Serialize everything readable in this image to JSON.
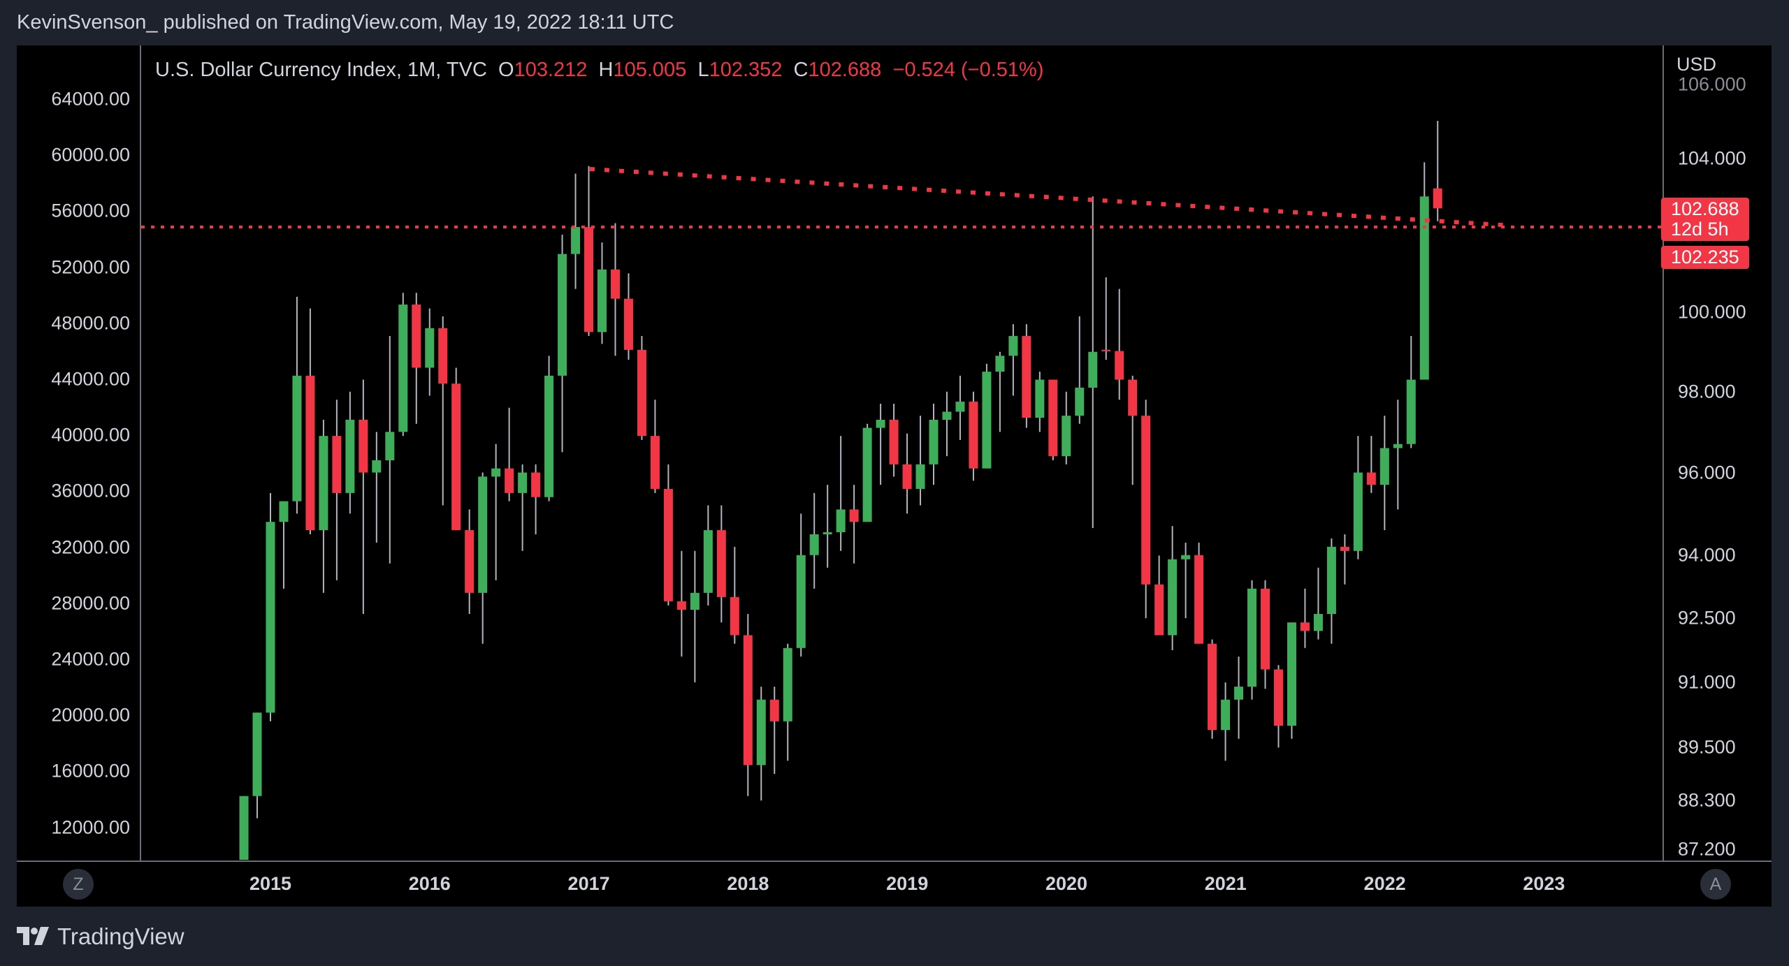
{
  "header": {
    "publish_line": "KevinSvenson_ published on TradingView.com, May 19, 2022 18:11 UTC"
  },
  "legend": {
    "symbol": "U.S. Dollar Currency Index, 1M, TVC",
    "o_label": "O",
    "o": "103.212",
    "h_label": "H",
    "h": "105.005",
    "l_label": "L",
    "l": "102.352",
    "c_label": "C",
    "c": "102.688",
    "change": "−0.524 (−0.51%)"
  },
  "left_axis": [
    "64000.00",
    "60000.00",
    "56000.00",
    "52000.00",
    "48000.00",
    "44000.00",
    "40000.00",
    "36000.00",
    "32000.00",
    "28000.00",
    "24000.00",
    "20000.00",
    "16000.00",
    "12000.00"
  ],
  "right_axis": {
    "currency": "USD",
    "ticks": [
      "106.000",
      "104.000",
      "100.000",
      "98.000",
      "96.000",
      "94.000",
      "92.500",
      "91.000",
      "89.500",
      "88.300",
      "87.200"
    ],
    "last_price": "102.688",
    "countdown": "12d 5h",
    "line_price": "102.235"
  },
  "time_axis": [
    "2015",
    "2016",
    "2017",
    "2018",
    "2019",
    "2020",
    "2021",
    "2022",
    "2023"
  ],
  "buttons": {
    "zoom": "Z",
    "auto": "A"
  },
  "footer": {
    "brand": "TradingView"
  },
  "colors": {
    "up": "#3fae5a",
    "down": "#f23645",
    "wick": "#b2b5be",
    "line": "#f23645"
  },
  "chart_data": {
    "type": "candlestick",
    "title": "U.S. Dollar Currency Index, 1M, TVC",
    "start": "2014-10",
    "interval": "1M",
    "ohlc": [
      [
        86.0,
        86.9,
        84.5,
        86.9
      ],
      [
        86.9,
        88.4,
        86.8,
        88.4
      ],
      [
        88.4,
        90.3,
        87.9,
        90.3
      ],
      [
        90.3,
        95.5,
        90.1,
        94.8
      ],
      [
        94.8,
        95.3,
        93.2,
        95.3
      ],
      [
        95.3,
        100.4,
        95.0,
        98.4
      ],
      [
        98.4,
        100.1,
        94.5,
        94.6
      ],
      [
        94.6,
        97.3,
        93.1,
        96.9
      ],
      [
        96.9,
        97.8,
        93.4,
        95.5
      ],
      [
        95.5,
        98.0,
        95.0,
        97.3
      ],
      [
        97.3,
        98.3,
        92.6,
        96.0
      ],
      [
        96.0,
        97.0,
        94.3,
        96.3
      ],
      [
        96.3,
        99.4,
        93.8,
        97.0
      ],
      [
        97.0,
        100.5,
        96.9,
        100.2
      ],
      [
        100.2,
        100.5,
        97.2,
        98.6
      ],
      [
        98.6,
        100.1,
        97.9,
        99.6
      ],
      [
        99.6,
        99.9,
        95.2,
        98.2
      ],
      [
        98.2,
        98.6,
        94.6,
        94.6
      ],
      [
        94.6,
        95.1,
        92.6,
        93.1
      ],
      [
        93.1,
        96.0,
        91.9,
        95.9
      ],
      [
        95.9,
        96.7,
        93.4,
        96.1
      ],
      [
        96.1,
        97.6,
        95.3,
        95.5
      ],
      [
        95.5,
        96.2,
        94.1,
        96.0
      ],
      [
        96.0,
        96.2,
        94.5,
        95.4
      ],
      [
        95.4,
        98.9,
        95.3,
        98.4
      ],
      [
        98.4,
        102.0,
        96.5,
        101.5
      ],
      [
        101.5,
        103.6,
        100.6,
        102.2
      ],
      [
        102.2,
        103.8,
        99.4,
        99.5
      ],
      [
        99.5,
        101.8,
        99.2,
        101.1
      ],
      [
        101.1,
        102.3,
        98.9,
        100.35
      ],
      [
        100.35,
        101.0,
        98.8,
        99.05
      ],
      [
        99.05,
        99.4,
        96.8,
        96.9
      ],
      [
        96.9,
        97.8,
        95.5,
        95.6
      ],
      [
        95.6,
        96.2,
        92.8,
        92.9
      ],
      [
        92.9,
        94.1,
        91.6,
        92.7
      ],
      [
        92.7,
        94.1,
        91.0,
        93.1
      ],
      [
        93.1,
        95.2,
        92.8,
        94.6
      ],
      [
        94.6,
        95.2,
        92.4,
        93.0
      ],
      [
        93.0,
        94.2,
        91.9,
        92.1
      ],
      [
        92.1,
        92.6,
        88.4,
        89.1
      ],
      [
        89.1,
        90.9,
        88.3,
        90.6
      ],
      [
        90.6,
        90.9,
        88.9,
        90.1
      ],
      [
        90.1,
        91.9,
        89.2,
        91.8
      ],
      [
        91.8,
        95.0,
        91.6,
        94.0
      ],
      [
        94.0,
        95.5,
        93.2,
        94.5
      ],
      [
        94.5,
        95.7,
        93.7,
        94.55
      ],
      [
        94.55,
        96.9,
        94.1,
        95.1
      ],
      [
        95.1,
        95.7,
        93.8,
        94.8
      ],
      [
        94.8,
        97.2,
        94.8,
        97.1
      ],
      [
        97.1,
        97.7,
        95.7,
        97.3
      ],
      [
        97.3,
        97.7,
        95.9,
        96.2
      ],
      [
        96.2,
        96.96,
        95.0,
        95.6
      ],
      [
        95.6,
        97.4,
        95.2,
        96.2
      ],
      [
        96.2,
        97.7,
        95.7,
        97.3
      ],
      [
        97.3,
        98.0,
        96.4,
        97.5
      ],
      [
        97.5,
        98.4,
        96.8,
        97.75
      ],
      [
        97.75,
        98.0,
        95.8,
        96.1
      ],
      [
        96.1,
        98.7,
        96.1,
        98.5
      ],
      [
        98.5,
        99.0,
        97.0,
        98.9
      ],
      [
        98.9,
        99.7,
        97.9,
        99.4
      ],
      [
        99.4,
        99.7,
        97.1,
        97.35
      ],
      [
        97.35,
        98.5,
        97.0,
        98.3
      ],
      [
        98.3,
        98.3,
        96.3,
        96.4
      ],
      [
        96.4,
        98.0,
        96.2,
        97.4
      ],
      [
        97.4,
        99.9,
        97.2,
        98.1
      ],
      [
        98.1,
        103.0,
        94.65,
        99.0
      ],
      [
        99.05,
        100.9,
        98.8,
        99.02
      ],
      [
        99.02,
        100.6,
        97.8,
        98.3
      ],
      [
        98.3,
        98.4,
        95.7,
        97.4
      ],
      [
        97.4,
        97.8,
        92.5,
        93.3
      ],
      [
        93.3,
        93.99,
        92.1,
        92.1
      ],
      [
        92.1,
        94.7,
        91.75,
        93.9
      ],
      [
        93.9,
        94.3,
        92.5,
        94.0
      ],
      [
        94.0,
        94.3,
        91.9,
        91.9
      ],
      [
        91.9,
        92.0,
        89.7,
        89.9
      ],
      [
        89.9,
        91.0,
        89.2,
        90.6
      ],
      [
        90.6,
        91.6,
        89.7,
        90.9
      ],
      [
        90.9,
        93.4,
        90.6,
        93.2
      ],
      [
        93.2,
        93.4,
        90.85,
        91.3
      ],
      [
        91.3,
        91.4,
        89.5,
        90.0
      ],
      [
        90.0,
        92.4,
        89.7,
        92.4
      ],
      [
        92.4,
        93.2,
        91.8,
        92.2
      ],
      [
        92.2,
        93.7,
        92.0,
        92.6
      ],
      [
        92.6,
        94.4,
        91.9,
        94.2
      ],
      [
        94.2,
        94.5,
        93.3,
        94.1
      ],
      [
        94.1,
        96.9,
        93.9,
        96.0
      ],
      [
        96.0,
        96.9,
        95.5,
        95.7
      ],
      [
        95.7,
        97.4,
        94.6,
        96.6
      ],
      [
        96.6,
        97.8,
        95.1,
        96.7
      ],
      [
        96.7,
        99.4,
        96.6,
        98.3
      ],
      [
        98.3,
        103.9,
        98.3,
        103.0
      ],
      [
        103.212,
        105.005,
        102.352,
        102.688
      ]
    ],
    "horizontal_line": 102.235,
    "trendline": {
      "from": [
        "2017-01",
        103.8
      ],
      "to": [
        "2022-10",
        102.3
      ]
    },
    "yscale": "log",
    "ylim": [
      86.5,
      106.5
    ]
  }
}
